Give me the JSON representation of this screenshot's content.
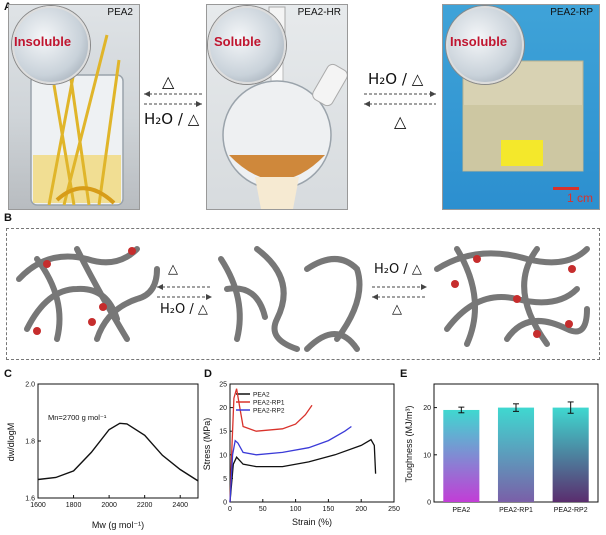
{
  "panel_a": {
    "letter": "A",
    "photos": [
      {
        "title": "PEA2",
        "bubble_label": "Insoluble"
      },
      {
        "title": "PEA2-HR",
        "bubble_label": "Soluble"
      },
      {
        "title": "PEA2-RP",
        "bubble_label": "Insoluble"
      }
    ],
    "arrow1_top": "△",
    "arrow1_bottom": "H₂O / △",
    "arrow2_top": "H₂O / △",
    "arrow2_bottom": "△",
    "scale_bar": "1 cm"
  },
  "panel_b": {
    "letter": "B",
    "arrow1_top": "△",
    "arrow1_bottom": "H₂O / △",
    "arrow2_top": "H₂O / △",
    "arrow2_bottom": "△"
  },
  "chart_data": [
    {
      "panel": "C",
      "type": "line",
      "xlabel": "Mw (g mol⁻¹)",
      "ylabel": "dw/dlogM",
      "annotation": "Mn=2700 g mol⁻¹",
      "xlim": [
        1600,
        2500
      ],
      "ylim": [
        1.6,
        2.0
      ],
      "xticks": [
        "1600",
        "1800",
        "2000",
        "2200",
        "2400"
      ],
      "yticks": [
        "1.6",
        "1.8",
        "2.0"
      ],
      "x": [
        1600,
        1700,
        1800,
        1900,
        2000,
        2060,
        2100,
        2200,
        2300,
        2400,
        2500
      ],
      "y": [
        1.665,
        1.672,
        1.695,
        1.76,
        1.84,
        1.862,
        1.86,
        1.82,
        1.75,
        1.7,
        1.66
      ]
    },
    {
      "panel": "D",
      "type": "line",
      "xlabel": "Strain (%)",
      "ylabel": "Stress (MPa)",
      "xlim": [
        0,
        250
      ],
      "ylim": [
        0,
        25
      ],
      "xticks": [
        "0",
        "50",
        "100",
        "150",
        "200",
        "250"
      ],
      "yticks": [
        "0",
        "5",
        "10",
        "15",
        "20",
        "25"
      ],
      "series": [
        {
          "name": "PEA2",
          "color": "#111111",
          "x": [
            0,
            5,
            10,
            20,
            40,
            80,
            120,
            160,
            200,
            215,
            220,
            222
          ],
          "y": [
            0,
            8,
            9.5,
            8,
            7.5,
            7.5,
            8.5,
            10,
            12,
            13.2,
            12,
            6
          ]
        },
        {
          "name": "PEA2-RP1",
          "color": "#d9322b",
          "x": [
            0,
            3,
            6,
            10,
            15,
            20,
            40,
            80,
            100,
            115,
            125
          ],
          "y": [
            0,
            12,
            22,
            24,
            20,
            16,
            15,
            15.5,
            16.5,
            18.5,
            20.5
          ]
        },
        {
          "name": "PEA2-RP2",
          "color": "#3b3bd8",
          "x": [
            0,
            4,
            8,
            12,
            20,
            40,
            80,
            120,
            150,
            175,
            185
          ],
          "y": [
            0,
            10,
            13,
            12.5,
            10.5,
            10,
            10.5,
            11.5,
            13,
            15,
            16
          ]
        }
      ]
    },
    {
      "panel": "E",
      "type": "bar",
      "ylabel": "Toughness (MJ/m³)",
      "ylim": [
        0,
        25
      ],
      "yticks": [
        "0",
        "10",
        "20"
      ],
      "categories": [
        "PEA2",
        "PEA2-RP1",
        "PEA2-RP2"
      ],
      "values": [
        19.5,
        20,
        20
      ],
      "errors": [
        0.6,
        0.8,
        1.2
      ]
    }
  ],
  "labels": {
    "c": "C",
    "d": "D",
    "e": "E"
  }
}
